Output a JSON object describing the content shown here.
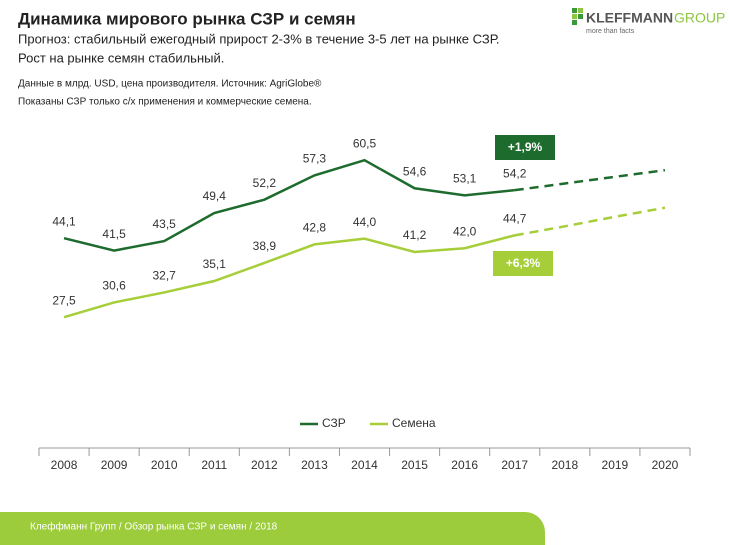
{
  "chart_data": {
    "type": "line",
    "title": "Динамика мирового рынка СЗР и семян",
    "subtitle": [
      "Прогноз: стабильный ежегодный прирост 2-3% в течение 3-5 лет на рынке СЗР.",
      "Рост на рынке семян стабильный."
    ],
    "notes": [
      "Данные в млрд. USD, цена производителя. Источник: AgriGlobe®",
      "Показаны СЗР только с/х применения и коммерческие семена."
    ],
    "categories": [
      "2008",
      "2009",
      "2010",
      "2011",
      "2012",
      "2013",
      "2014",
      "2015",
      "2016",
      "2017",
      "2018",
      "2019",
      "2020"
    ],
    "series": [
      {
        "name": "СЗР",
        "color": "#1e6b2e",
        "values": [
          44.1,
          41.5,
          43.5,
          49.4,
          52.2,
          57.3,
          60.5,
          54.6,
          53.1,
          54.2,
          null,
          null,
          null
        ],
        "value_labels": [
          "44,1",
          "41,5",
          "43,5",
          "49,4",
          "52,2",
          "57,3",
          "60,5",
          "54,6",
          "53,1",
          "54,2",
          null,
          null,
          null
        ],
        "forecast": [
          null,
          null,
          null,
          null,
          null,
          null,
          null,
          null,
          null,
          null,
          55.6,
          57.0,
          58.4
        ]
      },
      {
        "name": "Семена",
        "color": "#a6ce39",
        "values": [
          27.5,
          30.6,
          32.7,
          35.1,
          38.9,
          42.8,
          44.0,
          41.2,
          42.0,
          44.7,
          null,
          null,
          null
        ],
        "value_labels": [
          "27,5",
          "30,6",
          "32,7",
          "35,1",
          "38,9",
          "42,8",
          "44,0",
          "41,2",
          "42,0",
          "44,7",
          null,
          null,
          null
        ],
        "forecast": [
          null,
          null,
          null,
          null,
          null,
          null,
          null,
          null,
          null,
          null,
          46.6,
          48.6,
          50.5
        ]
      }
    ],
    "annotations": [
      {
        "text": "+1,9%",
        "color": "#1e6b2e"
      },
      {
        "text": "+6,3%",
        "color": "#a6ce39"
      }
    ],
    "ylim": [
      0,
      70
    ],
    "grid": false
  },
  "footer": "Клеффманн Групп / Обзор рынка СЗР и семян / 2018",
  "logo": {
    "name": "KLEFFMANN",
    "group": "GROUP",
    "tagline": "more than facts"
  }
}
